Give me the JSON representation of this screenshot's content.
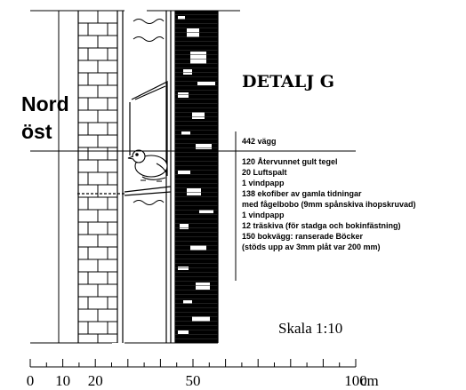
{
  "title": "DETALJ G",
  "orientation": {
    "line1": "Nord",
    "line2": "öst"
  },
  "wall_heading": "442 vägg",
  "layers": [
    "120 Återvunnet gult tegel",
    "20 Luftspalt",
    "1 vindpapp",
    "138 ekofiber av gamla tidningar",
    "med fågelbobo  (9mm spånskiva ihopskruvad)",
    "1 vindpapp",
    "12 träskiva (för stadga och bokinfästning)",
    "150 bokvägg: ranserade Böcker",
    "(stöds upp av 3mm plåt var 200 mm)"
  ],
  "scale_label": "Skala 1:10",
  "scale_bar": {
    "unit": "cm",
    "labels": [
      {
        "value": 0,
        "text": "0"
      },
      {
        "value": 10,
        "text": "10"
      },
      {
        "value": 20,
        "text": "20"
      },
      {
        "value": 50,
        "text": "50"
      },
      {
        "value": 100,
        "text": "100"
      }
    ]
  }
}
